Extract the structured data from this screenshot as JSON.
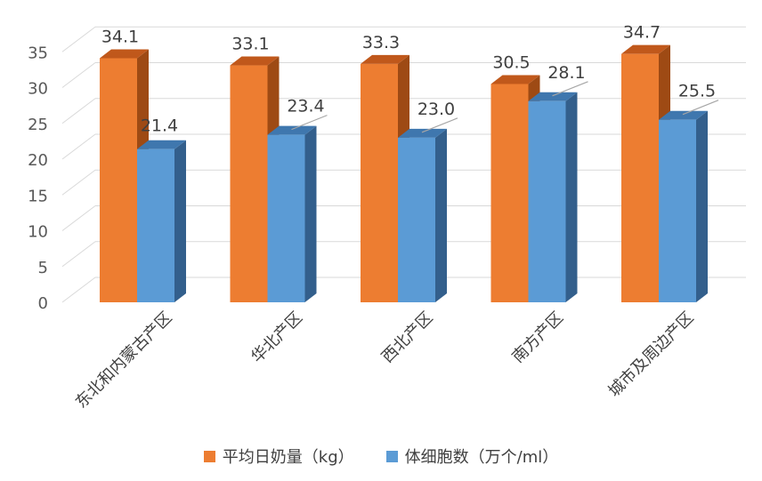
{
  "chart_data": {
    "type": "bar",
    "categories": [
      "东北和内蒙古产区",
      "华北产区",
      "西北产区",
      "南方产区",
      "城市及周边产区"
    ],
    "series": [
      {
        "name": "平均日奶量（kg）",
        "values": [
          34.1,
          33.1,
          33.3,
          30.5,
          34.7
        ],
        "color": "#ED7D31",
        "side_color": "#9E4A14",
        "top_color": "#C0581B"
      },
      {
        "name": "体细胞数（万个/ml）",
        "values": [
          21.4,
          23.4,
          23.0,
          28.1,
          25.5
        ],
        "color": "#5B9BD5",
        "side_color": "#335F8C",
        "top_color": "#3F77AE"
      }
    ],
    "title": "",
    "xlabel": "",
    "ylabel": "",
    "ylim": [
      0,
      35
    ],
    "yticks": [
      "0",
      "5",
      "10",
      "15",
      "20",
      "25",
      "30",
      "35"
    ],
    "data_labels": [
      [
        "34.1",
        "33.1",
        "33.3",
        "30.5",
        "34.7"
      ],
      [
        "21.4",
        "23.4",
        "23.0",
        "28.1",
        "25.5"
      ]
    ],
    "grid": true,
    "legend_position": "bottom",
    "three_d": true
  }
}
